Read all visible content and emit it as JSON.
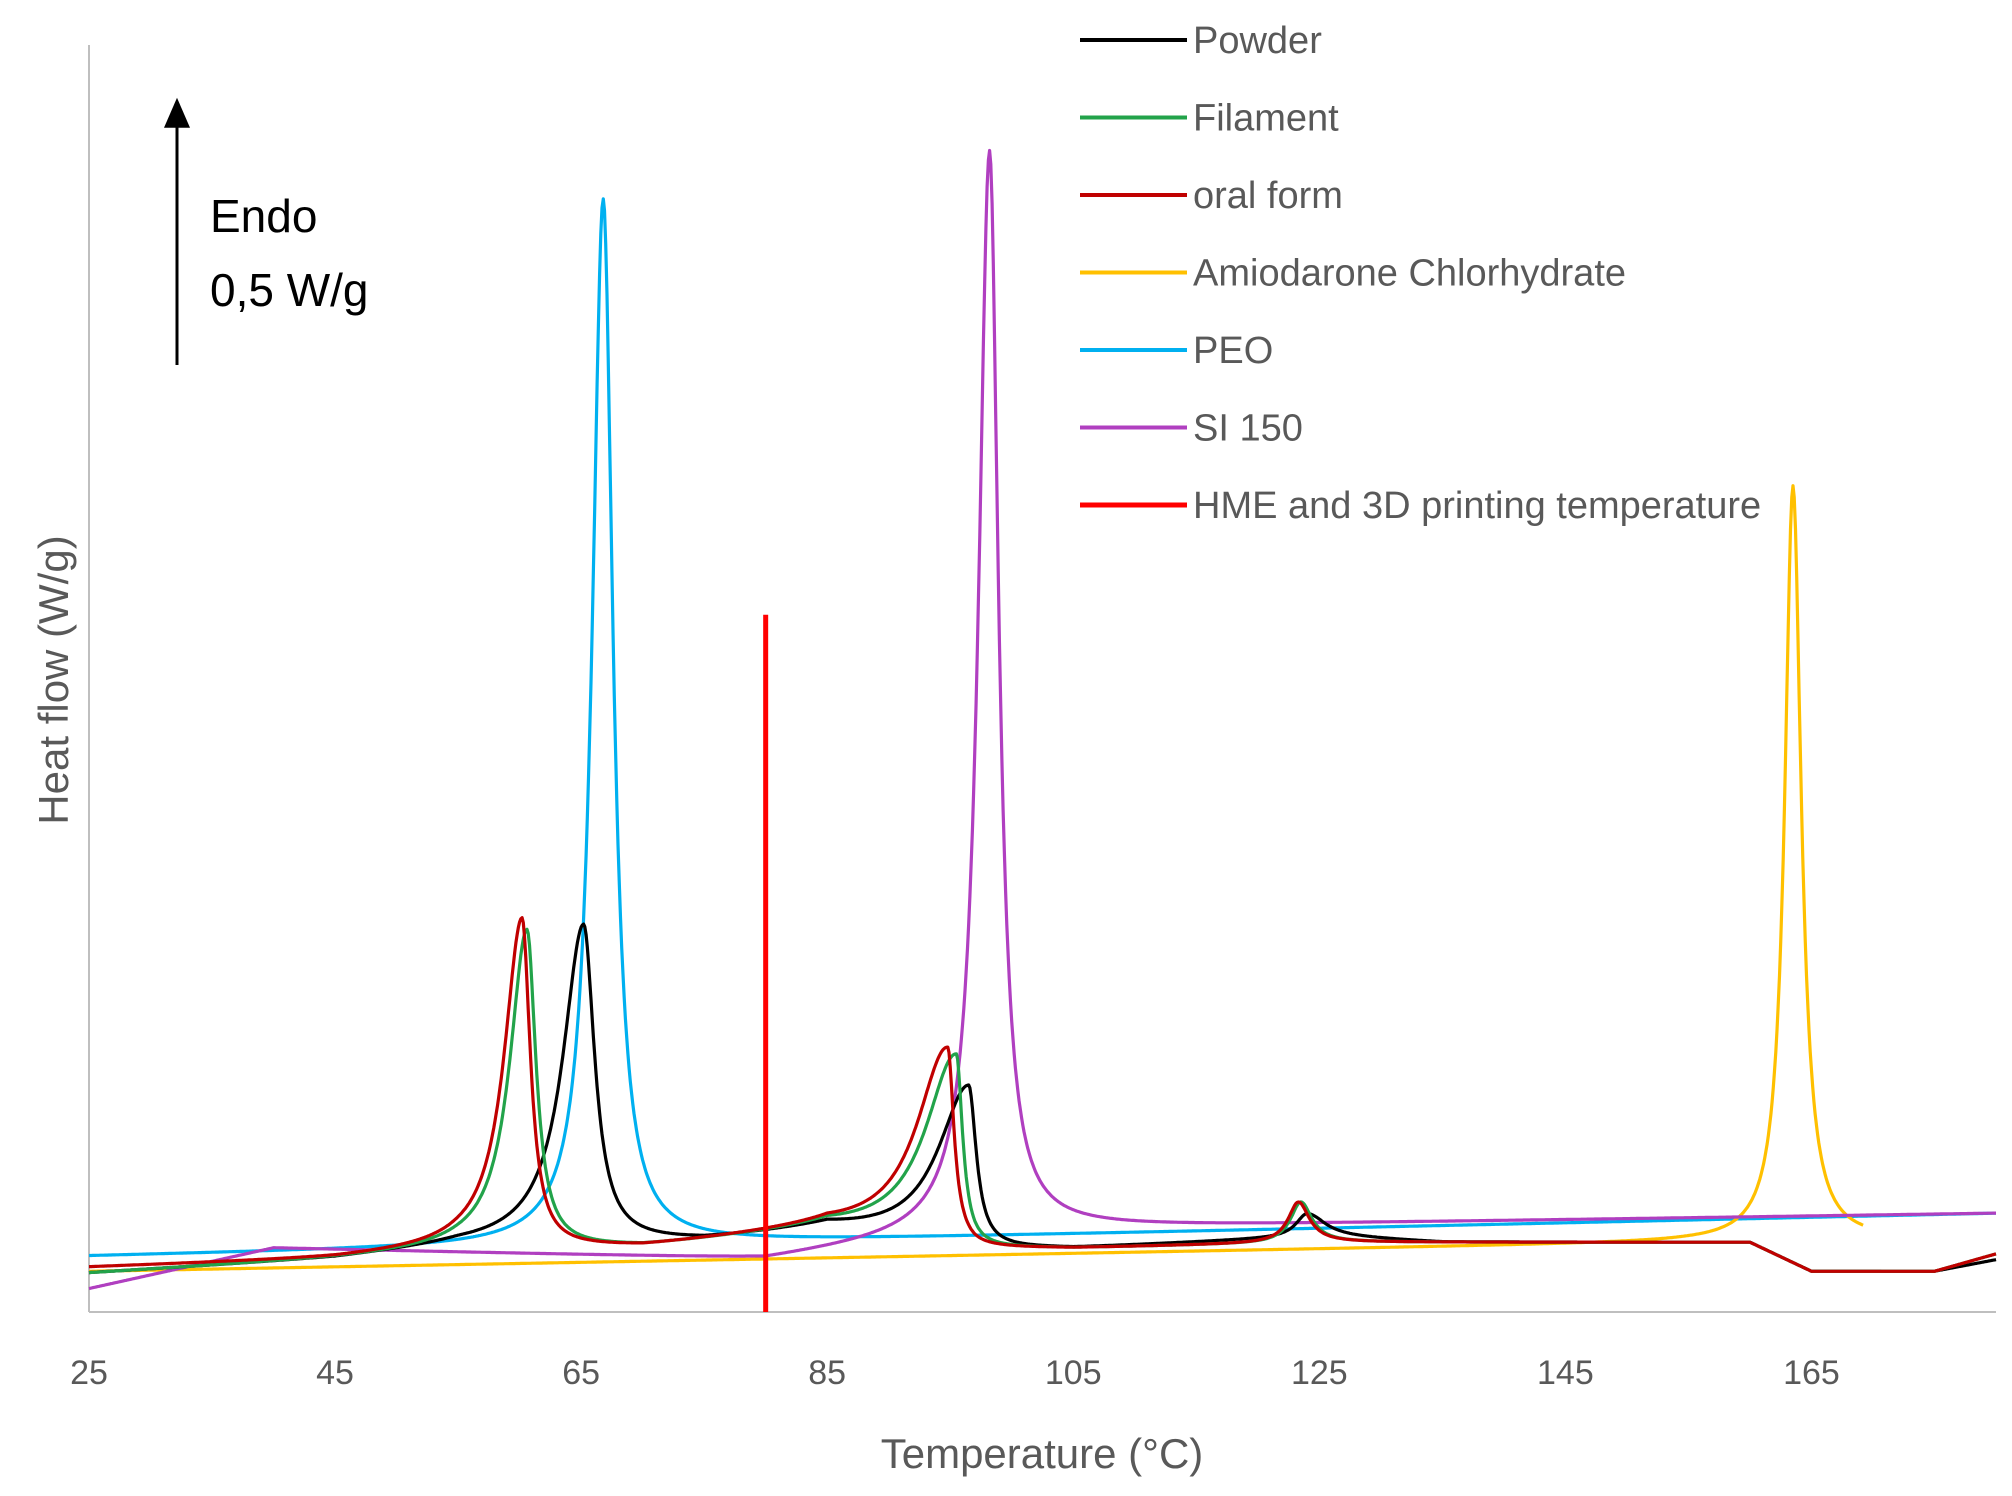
{
  "chart_data": {
    "type": "line",
    "title": "",
    "xlabel": "Temperature (°C)",
    "ylabel": "Heat flow (W/g)",
    "xlim": [
      25,
      180
    ],
    "ylim": [
      0,
      10
    ],
    "xticks": [
      25,
      45,
      65,
      85,
      105,
      125,
      145,
      165
    ],
    "grid": false,
    "legend_position": "top-right",
    "annotation": {
      "line1": "Endo",
      "line2": "0,5 W/g",
      "arrow_length_units": 2.3
    },
    "series": [
      {
        "name": "Powder",
        "color": "#000000",
        "baseline": [
          [
            25,
            0.33
          ],
          [
            45,
            0.45
          ],
          [
            55,
            0.55
          ],
          [
            75,
            0.6
          ],
          [
            85,
            0.7
          ],
          [
            95,
            0.55
          ],
          [
            105,
            0.55
          ],
          [
            125,
            0.65
          ],
          [
            135,
            0.6
          ],
          [
            160,
            0.6
          ],
          [
            165,
            0.35
          ],
          [
            175,
            0.35
          ],
          [
            180,
            0.45
          ]
        ],
        "peaks": [
          {
            "center": 65.2,
            "height": 2.75,
            "width_left": 3.0,
            "width_right": 1.6
          },
          {
            "center": 96.5,
            "height": 1.4,
            "width_left": 4.5,
            "width_right": 1.1
          },
          {
            "center": 124,
            "height": 0.2,
            "width_left": 1.6,
            "width_right": 2.5
          }
        ]
      },
      {
        "name": "Filament",
        "color": "#22A34A",
        "baseline": [
          [
            25,
            0.33
          ],
          [
            45,
            0.45
          ],
          [
            55,
            0.52
          ],
          [
            70,
            0.55
          ],
          [
            85,
            0.7
          ],
          [
            97,
            0.55
          ],
          [
            105,
            0.55
          ],
          [
            125,
            0.6
          ],
          [
            135,
            0.6
          ],
          [
            160,
            0.6
          ],
          [
            165,
            0.35
          ],
          [
            175,
            0.35
          ],
          [
            180,
            0.5
          ]
        ],
        "peaks": [
          {
            "center": 60.6,
            "height": 2.75,
            "width_left": 2.5,
            "width_right": 1.3
          },
          {
            "center": 95.5,
            "height": 1.65,
            "width_left": 4.5,
            "width_right": 0.9
          },
          {
            "center": 123.5,
            "height": 0.35,
            "width_left": 1.5,
            "width_right": 1.6
          }
        ]
      },
      {
        "name": "oral form",
        "color": "#C00000",
        "baseline": [
          [
            25,
            0.38
          ],
          [
            45,
            0.45
          ],
          [
            55,
            0.52
          ],
          [
            70,
            0.55
          ],
          [
            85,
            0.7
          ],
          [
            97,
            0.55
          ],
          [
            105,
            0.55
          ],
          [
            125,
            0.6
          ],
          [
            135,
            0.6
          ],
          [
            160,
            0.6
          ],
          [
            165,
            0.35
          ],
          [
            175,
            0.35
          ],
          [
            180,
            0.5
          ]
        ],
        "peaks": [
          {
            "center": 60.2,
            "height": 2.85,
            "width_left": 2.6,
            "width_right": 1.2
          },
          {
            "center": 94.8,
            "height": 1.7,
            "width_left": 4.5,
            "width_right": 0.9
          },
          {
            "center": 123.3,
            "height": 0.35,
            "width_left": 1.5,
            "width_right": 1.6
          }
        ]
      },
      {
        "name": "Amiodarone Chlorhydrate",
        "color": "#FFC000",
        "baseline": [
          [
            25,
            0.35
          ],
          [
            155,
            0.6
          ],
          [
            170,
            0.62
          ]
        ],
        "end_x": 169.2,
        "peaks": [
          {
            "center": 163.5,
            "height": 6.5,
            "width_left": 1.2,
            "width_right": 1.2
          }
        ]
      },
      {
        "name": "PEO",
        "color": "#00B0F0",
        "baseline": [
          [
            25,
            0.48
          ],
          [
            180,
            0.85
          ]
        ],
        "peaks": [
          {
            "center": 66.8,
            "height": 9.0,
            "width_left": 1.6,
            "width_right": 1.4
          }
        ]
      },
      {
        "name": "SI 150",
        "color": "#B03FC0",
        "baseline": [
          [
            25,
            0.2
          ],
          [
            40,
            0.55
          ],
          [
            80,
            0.45
          ],
          [
            100,
            0.72
          ],
          [
            180,
            0.85
          ]
        ],
        "peaks": [
          {
            "center": 98.2,
            "height": 9.3,
            "width_left": 1.6,
            "width_right": 1.3
          }
        ]
      },
      {
        "name": "HME and 3D printing temperature",
        "color": "#FF0000",
        "type": "vline",
        "x": 80,
        "y_from": 0,
        "y_to": 6.0
      }
    ]
  }
}
